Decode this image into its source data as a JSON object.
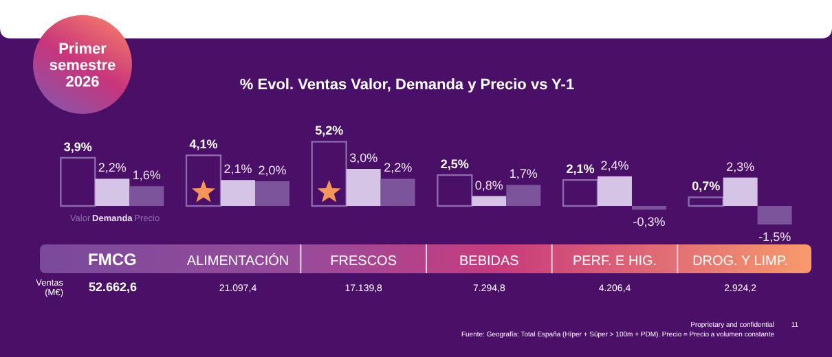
{
  "chart_data": {
    "type": "bar",
    "title": "% Evol. Ventas Valor, Demanda y Precio vs Y-1",
    "categories": [
      "FMCG",
      "ALIMENTACIÓN",
      "FRESCOS",
      "BEBIDAS",
      "PERF. E HIG.",
      "DROG. Y LIMP."
    ],
    "series": [
      {
        "name": "Valor",
        "color": "#8a6aaa",
        "values": [
          3.9,
          4.1,
          5.2,
          2.5,
          2.1,
          0.7
        ],
        "value_labels": [
          "3,9%",
          "4,1%",
          "5,2%",
          "2,5%",
          "2,1%",
          "0,7%"
        ]
      },
      {
        "name": "Demanda",
        "color": "#d6c4e6",
        "values": [
          2.2,
          2.1,
          3.0,
          0.8,
          2.4,
          2.3
        ],
        "value_labels": [
          "2,2%",
          "2,1%",
          "3,0%",
          "0,8%",
          "2,4%",
          "2,3%"
        ]
      },
      {
        "name": "Precio",
        "color": "#7c549c",
        "values": [
          1.6,
          2.0,
          2.2,
          1.7,
          -0.3,
          -1.5
        ],
        "value_labels": [
          "1,6%",
          "2,0%",
          "2,2%",
          "1,7%",
          "-0,3%",
          "-1,5%"
        ]
      }
    ],
    "legend": "bottom left",
    "annotations": [
      "Primer semestre 2026",
      "Ventas (M€)",
      "52.662,6",
      "21.097,4",
      "17.139,8",
      "7.294,8",
      "4.206,4",
      "2.924,2",
      "Proprietary and confidential",
      "11",
      "Fuente: Geografía: Total España (Híper + Súper > 100m + PDM). Precio = Precio a volumen constante"
    ]
  }
}
